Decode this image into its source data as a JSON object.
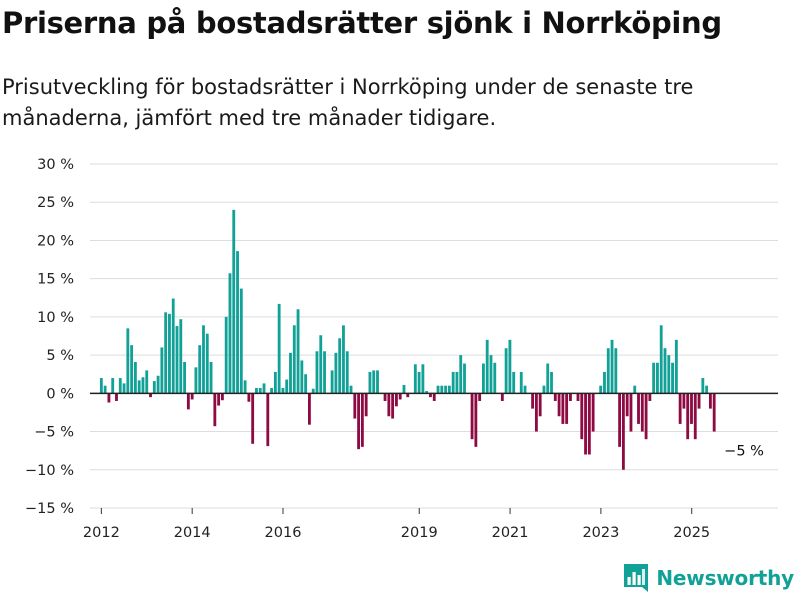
{
  "title": "Priserna på bostadsrätter sjönk i Norrköping",
  "subtitle": "Prisutveckling för bostadsrätter i Norrköping under de senaste tre månaderna, jämfört med tre månader tidigare.",
  "brand": {
    "name": "Newsworthy",
    "icon": "newsworthy-logo-icon"
  },
  "colors": {
    "positive": "#12a197",
    "negative": "#8e0a42",
    "accent": "#12a197",
    "grid": "#dddddd",
    "zero_line": "#222222",
    "text": "#111111"
  },
  "chart_data": {
    "type": "bar",
    "title": "Priserna på bostadsrätter sjönk i Norrköping",
    "xlabel": "",
    "ylabel": "",
    "ylim": [
      -15,
      30
    ],
    "yticks": [
      -15,
      -10,
      -5,
      0,
      5,
      10,
      15,
      20,
      25,
      30
    ],
    "ytick_labels": [
      "−15 %",
      "−10 %",
      "−5 %",
      "0 %",
      "5 %",
      "10 %",
      "15 %",
      "20 %",
      "25 %",
      "30 %"
    ],
    "xlim": [
      2011.75,
      2026.9
    ],
    "xticks": [
      2012,
      2014,
      2016,
      2019,
      2021,
      2023,
      2025
    ],
    "xtick_labels": [
      "2012",
      "2014",
      "2016",
      "2019",
      "2021",
      "2023",
      "2025"
    ],
    "x_start": 2012.0,
    "x_step": 0.0833,
    "values": [
      2,
      1,
      -1.2,
      2,
      -1,
      2,
      1.3,
      8.5,
      6.3,
      4.1,
      1.7,
      2.1,
      3,
      -0.5,
      1.6,
      2.3,
      6,
      10.6,
      10.4,
      12.4,
      8.8,
      9.7,
      4.1,
      -2.1,
      -0.8,
      3.4,
      6.3,
      8.9,
      7.8,
      4.1,
      -4.3,
      -1.6,
      -0.9,
      10,
      15.7,
      24,
      18.6,
      13.7,
      1.7,
      -1.1,
      -6.6,
      0.7,
      0.7,
      1.3,
      -6.9,
      0.7,
      2.8,
      11.7,
      0.7,
      1.8,
      5.3,
      8.9,
      11,
      4.3,
      2.5,
      -4.1,
      0.6,
      5.5,
      7.6,
      5.5,
      0,
      3,
      5.3,
      7.2,
      8.9,
      5.5,
      1,
      -3.3,
      -7.3,
      -7,
      -3,
      2.8,
      3,
      3,
      0,
      -1,
      -3,
      -3.3,
      -1.7,
      -0.8,
      1.1,
      -0.5,
      0,
      3.8,
      2.8,
      3.8,
      0.3,
      -0.5,
      -1,
      1,
      1,
      1,
      1,
      2.8,
      2.8,
      5,
      3.9,
      0,
      -6,
      -7,
      -1,
      3.9,
      7,
      5,
      4,
      0,
      -1,
      5.9,
      7,
      2.8,
      0,
      2.8,
      1,
      0,
      -2,
      -5,
      -3,
      1,
      3.9,
      2.8,
      -1,
      -3,
      -4,
      -4,
      -1,
      0,
      -1,
      -6,
      -8,
      -8,
      -5,
      0,
      1,
      2.8,
      5.9,
      7,
      5.9,
      -7,
      -10,
      -3,
      -5,
      1,
      -4,
      -5,
      -6,
      -1,
      4,
      4,
      8.9,
      5.9,
      5,
      4,
      7,
      -4,
      -2,
      -6,
      -4,
      -6,
      -2,
      2,
      1,
      -2,
      -5
    ],
    "annotation": {
      "text": "−5 %",
      "target": "last-bar"
    }
  }
}
